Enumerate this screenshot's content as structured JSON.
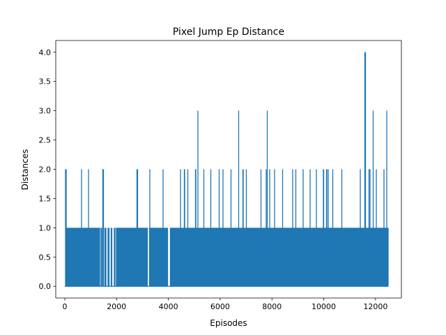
{
  "chart_data": {
    "type": "line",
    "title": "Pixel Jump Ep Distance",
    "xlabel": "Episodes",
    "ylabel": "Distances",
    "xlim": [
      -350,
      13000
    ],
    "ylim": [
      -0.2,
      4.2
    ],
    "x_ticks": [
      0,
      2000,
      4000,
      6000,
      8000,
      10000,
      12000
    ],
    "x_tick_labels": [
      "0",
      "2000",
      "4000",
      "6000",
      "8000",
      "10000",
      "12000"
    ],
    "y_ticks": [
      0.0,
      0.5,
      1.0,
      1.5,
      2.0,
      2.5,
      3.0,
      3.5,
      4.0
    ],
    "y_tick_labels": [
      "0.0",
      "0.5",
      "1.0",
      "1.5",
      "2.0",
      "2.5",
      "3.0",
      "3.5",
      "4.0"
    ],
    "grid": false,
    "legend": "none",
    "episode_count": 12500,
    "baseline_level_ranges": {
      "1": [
        [
          40,
          1350
        ],
        [
          1400,
          1430
        ],
        [
          1470,
          1500
        ],
        [
          1560,
          1600
        ],
        [
          1680,
          1720
        ],
        [
          1790,
          1830
        ],
        [
          1900,
          1940
        ],
        [
          2000,
          3200
        ],
        [
          3280,
          3980
        ],
        [
          4080,
          12500
        ]
      ]
    },
    "spikes": [
      {
        "x": 40,
        "y": 2
      },
      {
        "x": 60,
        "y": 2
      },
      {
        "x": 650,
        "y": 2
      },
      {
        "x": 920,
        "y": 2
      },
      {
        "x": 1480,
        "y": 2
      },
      {
        "x": 1500,
        "y": 2
      },
      {
        "x": 2800,
        "y": 2
      },
      {
        "x": 2820,
        "y": 2
      },
      {
        "x": 3290,
        "y": 2
      },
      {
        "x": 3800,
        "y": 2
      },
      {
        "x": 4480,
        "y": 2
      },
      {
        "x": 4630,
        "y": 2
      },
      {
        "x": 4760,
        "y": 2
      },
      {
        "x": 5060,
        "y": 2
      },
      {
        "x": 5150,
        "y": 3
      },
      {
        "x": 5380,
        "y": 2
      },
      {
        "x": 5650,
        "y": 2
      },
      {
        "x": 5970,
        "y": 2
      },
      {
        "x": 6120,
        "y": 2
      },
      {
        "x": 6430,
        "y": 2
      },
      {
        "x": 6720,
        "y": 3
      },
      {
        "x": 6890,
        "y": 2
      },
      {
        "x": 7020,
        "y": 2
      },
      {
        "x": 7580,
        "y": 2
      },
      {
        "x": 7790,
        "y": 2
      },
      {
        "x": 7830,
        "y": 3
      },
      {
        "x": 7920,
        "y": 2
      },
      {
        "x": 8110,
        "y": 2
      },
      {
        "x": 8420,
        "y": 2
      },
      {
        "x": 8810,
        "y": 2
      },
      {
        "x": 8930,
        "y": 2
      },
      {
        "x": 9210,
        "y": 2
      },
      {
        "x": 9480,
        "y": 2
      },
      {
        "x": 9720,
        "y": 2
      },
      {
        "x": 10000,
        "y": 2
      },
      {
        "x": 10120,
        "y": 2
      },
      {
        "x": 10180,
        "y": 2
      },
      {
        "x": 10360,
        "y": 2
      },
      {
        "x": 10700,
        "y": 2
      },
      {
        "x": 11420,
        "y": 2
      },
      {
        "x": 11600,
        "y": 4
      },
      {
        "x": 11620,
        "y": 4
      },
      {
        "x": 11760,
        "y": 2
      },
      {
        "x": 11800,
        "y": 2
      },
      {
        "x": 11920,
        "y": 3
      },
      {
        "x": 12040,
        "y": 2
      },
      {
        "x": 12330,
        "y": 2
      },
      {
        "x": 12440,
        "y": 3
      }
    ],
    "color": "#1f77b4"
  }
}
